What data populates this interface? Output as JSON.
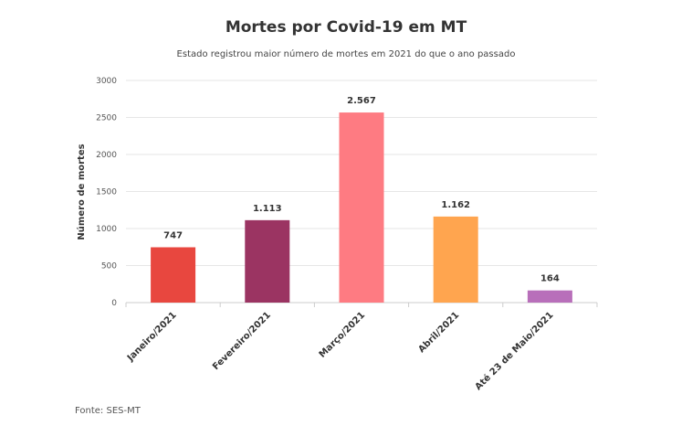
{
  "chart_data": {
    "type": "bar",
    "title": "Mortes por Covid-19 em MT",
    "subtitle": "Estado registrou maior número de mortes em 2021 do que o ano passado",
    "ylabel": "Número de mortes",
    "xlabel": "",
    "ylim": [
      0,
      3000
    ],
    "yticks": [
      0,
      500,
      1000,
      1500,
      2000,
      2500,
      3000
    ],
    "grid": true,
    "legend": "none",
    "categories": [
      "Janeiro/2021",
      "Fevereiro/2021",
      "Março/2021",
      "Abril/2021",
      "Até 23 de Maio/2021"
    ],
    "values": [
      747,
      1113,
      2567,
      1162,
      164
    ],
    "data_labels": [
      "747",
      "1.113",
      "2.567",
      "1.162",
      "164"
    ],
    "colors": [
      "#e8473f",
      "#9b3462",
      "#fe7b82",
      "#ffa54f",
      "#b86fba"
    ],
    "source": "Fonte: SES-MT"
  }
}
